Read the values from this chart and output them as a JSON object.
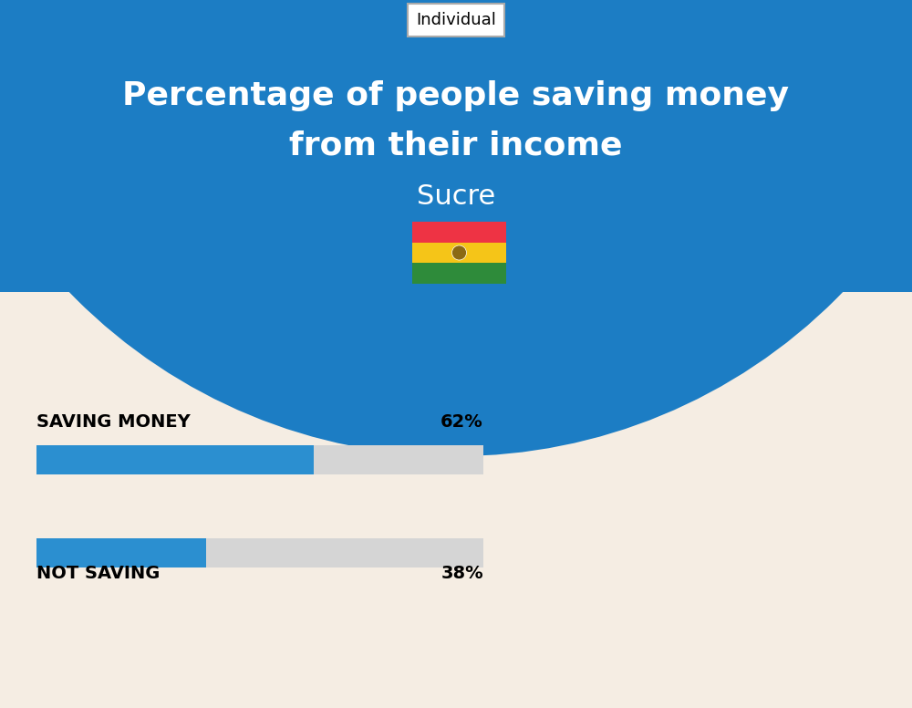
{
  "title_line1": "Percentage of people saving money",
  "title_line2": "from their income",
  "subtitle": "Sucre",
  "tab_label": "Individual",
  "saving_label": "SAVING MONEY",
  "saving_value": 62,
  "saving_pct_text": "62%",
  "not_saving_label": "NOT SAVING",
  "not_saving_value": 38,
  "not_saving_pct_text": "38%",
  "bar_color": "#2B8FD0",
  "bar_bg_color": "#D5D5D5",
  "bg_top_color": "#1C7DC4",
  "bg_bottom_color": "#F5EDE3",
  "title_color": "#FFFFFF",
  "subtitle_color": "#FFFFFF",
  "label_color": "#000000",
  "pct_color": "#000000",
  "fig_width": 10.0,
  "fig_height": 7.76,
  "flag_red": "#EE3344",
  "flag_yellow": "#F5C518",
  "flag_green": "#2E8B3A"
}
